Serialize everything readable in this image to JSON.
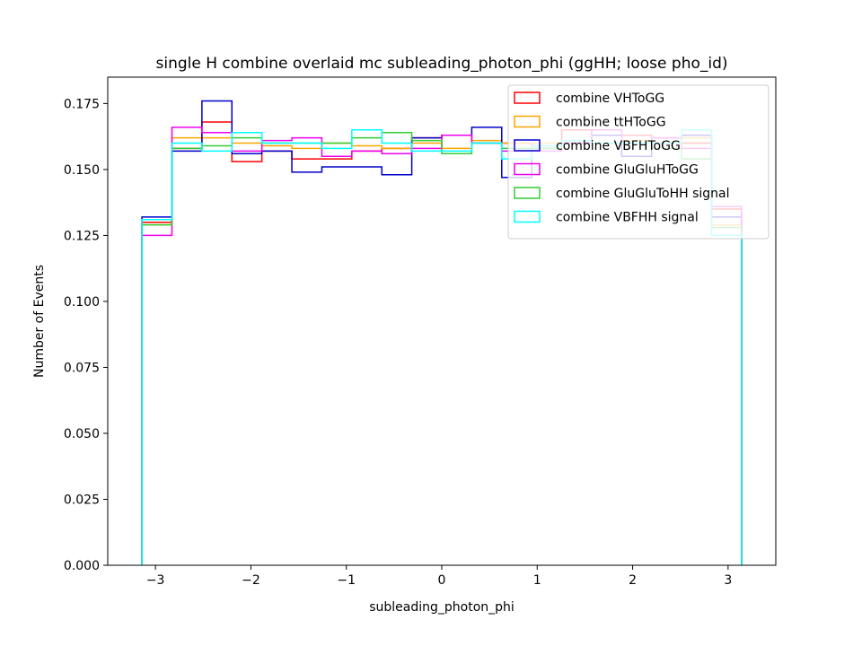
{
  "chart_data": {
    "type": "histogram",
    "title": "single H combine overlaid mc subleading_photon_phi (ggHH; loose pho_id)",
    "xlabel": "subleading_photon_phi",
    "ylabel": "Number of Events",
    "xlim": [
      -3.5,
      3.5
    ],
    "ylim": [
      0.0,
      0.185
    ],
    "xticks": [
      -3,
      -2,
      -1,
      0,
      1,
      2,
      3
    ],
    "xtick_labels": [
      "−3",
      "−2",
      "−1",
      "0",
      "1",
      "2",
      "3"
    ],
    "yticks": [
      0.0,
      0.025,
      0.05,
      0.075,
      0.1,
      0.125,
      0.15,
      0.175
    ],
    "ytick_labels": [
      "0.000",
      "0.025",
      "0.050",
      "0.075",
      "0.100",
      "0.125",
      "0.150",
      "0.175"
    ],
    "grid": false,
    "legend_position": "top-right",
    "bin_edges": [
      -3.1416,
      -2.8274,
      -2.5133,
      -2.1991,
      -1.885,
      -1.5708,
      -1.2566,
      -0.9425,
      -0.6283,
      -0.3142,
      0.0,
      0.3142,
      0.6283,
      0.9425,
      1.2566,
      1.5708,
      1.885,
      2.1991,
      2.5133,
      2.8274,
      3.1416
    ],
    "series": [
      {
        "name": "combine VHToGG",
        "color": "#ff0000",
        "values": [
          0.13,
          0.158,
          0.168,
          0.153,
          0.157,
          0.154,
          0.154,
          0.157,
          0.158,
          0.162,
          0.163,
          0.16,
          0.16,
          0.159,
          0.165,
          0.16,
          0.163,
          0.16,
          0.16,
          0.135
        ]
      },
      {
        "name": "combine ttHToGG",
        "color": "#ffa500",
        "values": [
          0.129,
          0.162,
          0.162,
          0.16,
          0.159,
          0.158,
          0.16,
          0.159,
          0.158,
          0.16,
          0.158,
          0.161,
          0.16,
          0.16,
          0.161,
          0.16,
          0.161,
          0.162,
          0.162,
          0.129
        ]
      },
      {
        "name": "combine VBFHToGG",
        "color": "#0000cc",
        "values": [
          0.132,
          0.157,
          0.176,
          0.156,
          0.157,
          0.149,
          0.151,
          0.151,
          0.148,
          0.162,
          0.163,
          0.166,
          0.147,
          0.158,
          0.16,
          0.163,
          0.155,
          0.162,
          0.163,
          0.132
        ]
      },
      {
        "name": "combine GluGluHToGG",
        "color": "#ee00ee",
        "values": [
          0.125,
          0.166,
          0.164,
          0.157,
          0.161,
          0.162,
          0.155,
          0.157,
          0.156,
          0.158,
          0.163,
          0.16,
          0.157,
          0.157,
          0.16,
          0.165,
          0.16,
          0.162,
          0.158,
          0.136
        ]
      },
      {
        "name": "combine GluGluToHH signal",
        "color": "#33cc33",
        "values": [
          0.129,
          0.158,
          0.159,
          0.162,
          0.16,
          0.16,
          0.16,
          0.162,
          0.164,
          0.161,
          0.156,
          0.16,
          0.158,
          0.158,
          0.161,
          0.16,
          0.16,
          0.158,
          0.154,
          0.128
        ]
      },
      {
        "name": "combine VBFHH signal",
        "color": "#00ffff",
        "values": [
          0.131,
          0.16,
          0.157,
          0.164,
          0.16,
          0.16,
          0.158,
          0.165,
          0.16,
          0.157,
          0.157,
          0.16,
          0.154,
          0.159,
          0.161,
          0.16,
          0.16,
          0.16,
          0.165,
          0.125
        ]
      }
    ]
  }
}
